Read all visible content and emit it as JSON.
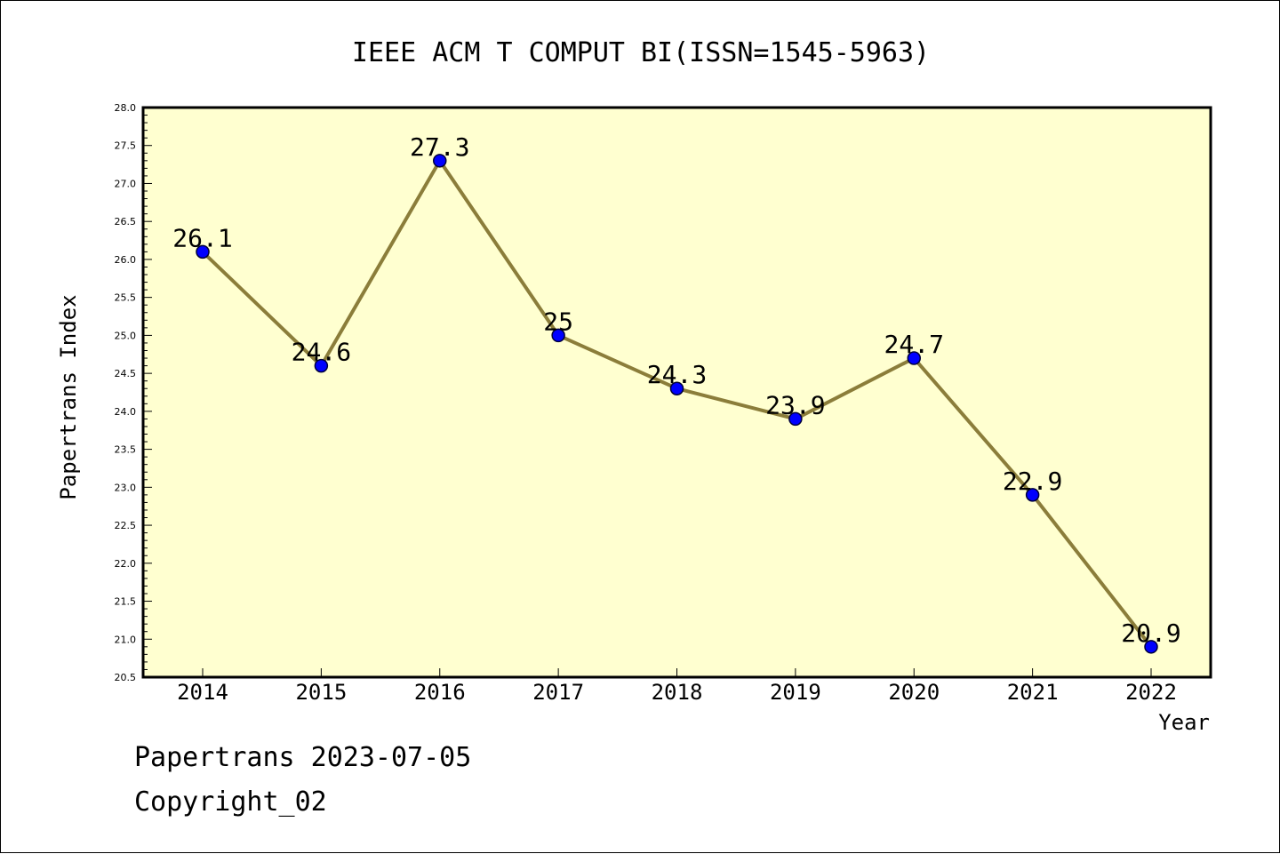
{
  "chart_data": {
    "type": "line",
    "title": "IEEE ACM T COMPUT BI(ISSN=1545-5963)",
    "xlabel": "Year",
    "ylabel": "Papertrans Index",
    "categories": [
      "2014",
      "2015",
      "2016",
      "2017",
      "2018",
      "2019",
      "2020",
      "2021",
      "2022"
    ],
    "values": [
      26.1,
      24.6,
      27.3,
      25.0,
      24.3,
      23.9,
      24.7,
      22.9,
      20.9
    ],
    "data_labels": [
      "26.1",
      "24.6",
      "27.3",
      "25",
      "24.3",
      "23.9",
      "24.7",
      "22.9",
      "20.9"
    ],
    "ylim": [
      20.5,
      28.0
    ],
    "yticks": [
      "20.5",
      "21.0",
      "21.5",
      "22.0",
      "22.5",
      "23.0",
      "23.5",
      "24.0",
      "24.5",
      "25.0",
      "25.5",
      "26.0",
      "26.5",
      "27.0",
      "27.5",
      "28.0"
    ],
    "grid": false,
    "legend": "none",
    "colors": {
      "plot_background": "#ffffd0",
      "line": "#8b7d3a",
      "marker": "#0000ff"
    }
  },
  "footer": {
    "line1": "Papertrans 2023-07-05",
    "line2": "Copyright_02"
  }
}
